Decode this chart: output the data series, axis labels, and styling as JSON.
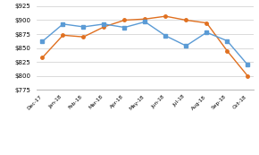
{
  "categories": [
    "Dec-17",
    "Jan-18",
    "Feb-18",
    "Mar-18",
    "Apr-18",
    "May-18",
    "Jun-18",
    "Jul-18",
    "Aug-18",
    "Sep-18",
    "Oct-18"
  ],
  "domestic": [
    833,
    873,
    870,
    888,
    900,
    902,
    907,
    900,
    895,
    845,
    800
  ],
  "export": [
    862,
    893,
    888,
    893,
    887,
    897,
    872,
    854,
    878,
    863,
    820
  ],
  "domestic_color": "#E07020",
  "export_color": "#5B9BD5",
  "ylim": [
    775,
    925
  ],
  "yticks": [
    775,
    800,
    825,
    850,
    875,
    900,
    925
  ],
  "background_color": "#FFFFFF",
  "grid_color": "#CCCCCC"
}
